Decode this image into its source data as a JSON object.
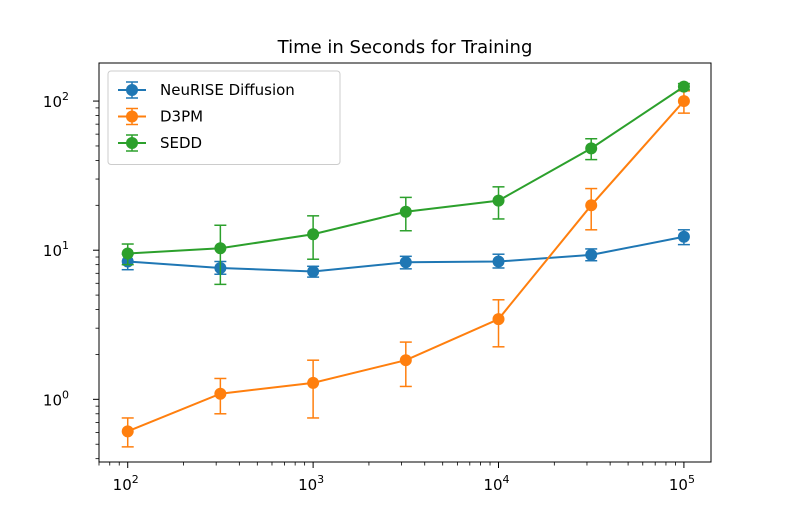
{
  "chart_data": {
    "type": "line",
    "title": "Time in Seconds for Training",
    "xlabel": "",
    "ylabel": "",
    "xscale": "log",
    "yscale": "log",
    "xlim": [
      70,
      140000
    ],
    "ylim": [
      0.38,
      180
    ],
    "x": [
      100,
      316,
      1000,
      3162,
      10000,
      31623,
      100000
    ],
    "xticks": [
      {
        "value": 100,
        "base": "10",
        "exp": "2"
      },
      {
        "value": 1000,
        "base": "10",
        "exp": "3"
      },
      {
        "value": 10000,
        "base": "10",
        "exp": "4"
      },
      {
        "value": 100000,
        "base": "10",
        "exp": "5"
      }
    ],
    "yticks": [
      {
        "value": 1,
        "base": "10",
        "exp": "0"
      },
      {
        "value": 10,
        "base": "10",
        "exp": "1"
      },
      {
        "value": 100,
        "base": "10",
        "exp": "2"
      }
    ],
    "legend_position": "top-left",
    "series": [
      {
        "name": "NeuRISE Diffusion",
        "color": "#1f77b4",
        "values": [
          8.4,
          7.6,
          7.2,
          8.3,
          8.4,
          9.3,
          12.3
        ],
        "err_low": [
          7.4,
          6.9,
          6.6,
          7.5,
          7.6,
          8.5,
          10.9
        ],
        "err_high": [
          9.4,
          8.4,
          7.8,
          9.1,
          9.4,
          10.2,
          13.7
        ]
      },
      {
        "name": "D3PM",
        "color": "#ff7f0e",
        "values": [
          0.61,
          1.09,
          1.29,
          1.83,
          3.45,
          20.0,
          100.0
        ],
        "err_low": [
          0.48,
          0.8,
          0.75,
          1.22,
          2.25,
          13.7,
          83.0
        ],
        "err_high": [
          0.75,
          1.38,
          1.83,
          2.42,
          4.65,
          25.9,
          117.0
        ]
      },
      {
        "name": "SEDD",
        "color": "#2ca02c",
        "values": [
          9.5,
          10.3,
          12.8,
          18.1,
          21.5,
          48.2,
          125.0
        ],
        "err_low": [
          8.0,
          5.9,
          8.7,
          13.5,
          16.2,
          40.5,
          119.0
        ],
        "err_high": [
          11.0,
          14.7,
          17.0,
          22.6,
          26.6,
          55.9,
          131.0
        ]
      }
    ]
  }
}
